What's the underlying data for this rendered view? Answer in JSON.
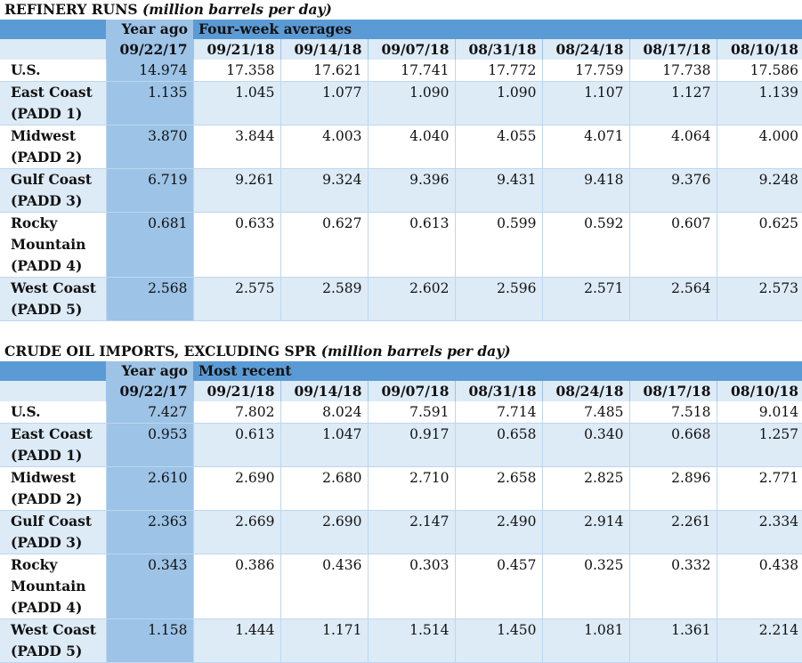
{
  "tables": [
    {
      "title": "REFINERY RUNS",
      "unit": "(million barrels per day)",
      "year_ago_label": "Year ago",
      "group_label": "Four-week averages",
      "dates": [
        "09/22/17",
        "09/21/18",
        "09/14/18",
        "09/07/18",
        "08/31/18",
        "08/24/18",
        "08/17/18",
        "08/10/18"
      ],
      "rows": [
        {
          "region": "U.S.",
          "values": [
            "14.974",
            "17.358",
            "17.621",
            "17.741",
            "17.772",
            "17.759",
            "17.738",
            "17.586"
          ]
        },
        {
          "region": "East Coast (PADD 1)",
          "values": [
            "1.135",
            "1.045",
            "1.077",
            "1.090",
            "1.090",
            "1.107",
            "1.127",
            "1.139"
          ]
        },
        {
          "region": "Midwest (PADD 2)",
          "values": [
            "3.870",
            "3.844",
            "4.003",
            "4.040",
            "4.055",
            "4.071",
            "4.064",
            "4.000"
          ]
        },
        {
          "region": "Gulf Coast (PADD 3)",
          "values": [
            "6.719",
            "9.261",
            "9.324",
            "9.396",
            "9.431",
            "9.418",
            "9.376",
            "9.248"
          ]
        },
        {
          "region": "Rocky Mountain (PADD 4)",
          "values": [
            "0.681",
            "0.633",
            "0.627",
            "0.613",
            "0.599",
            "0.592",
            "0.607",
            "0.625"
          ]
        },
        {
          "region": "West Coast (PADD 5)",
          "values": [
            "2.568",
            "2.575",
            "2.589",
            "2.602",
            "2.596",
            "2.571",
            "2.564",
            "2.573"
          ]
        }
      ]
    },
    {
      "title": "CRUDE OIL IMPORTS, EXCLUDING SPR",
      "unit": "(million barrels per day)",
      "year_ago_label": "Year ago",
      "group_label": "Most recent",
      "dates": [
        "09/22/17",
        "09/21/18",
        "09/14/18",
        "09/07/18",
        "08/31/18",
        "08/24/18",
        "08/17/18",
        "08/10/18"
      ],
      "rows": [
        {
          "region": "U.S.",
          "values": [
            "7.427",
            "7.802",
            "8.024",
            "7.591",
            "7.714",
            "7.485",
            "7.518",
            "9.014"
          ]
        },
        {
          "region": "East Coast (PADD 1)",
          "values": [
            "0.953",
            "0.613",
            "1.047",
            "0.917",
            "0.658",
            "0.340",
            "0.668",
            "1.257"
          ]
        },
        {
          "region": "Midwest (PADD 2)",
          "values": [
            "2.610",
            "2.690",
            "2.680",
            "2.710",
            "2.658",
            "2.825",
            "2.896",
            "2.771"
          ]
        },
        {
          "region": "Gulf Coast (PADD 3)",
          "values": [
            "2.363",
            "2.669",
            "2.690",
            "2.147",
            "2.490",
            "2.914",
            "2.261",
            "2.334"
          ]
        },
        {
          "region": "Rocky Mountain (PADD 4)",
          "values": [
            "0.343",
            "0.386",
            "0.436",
            "0.303",
            "0.457",
            "0.325",
            "0.332",
            "0.438"
          ]
        },
        {
          "region": "West Coast (PADD 5)",
          "values": [
            "1.158",
            "1.444",
            "1.171",
            "1.514",
            "1.450",
            "1.081",
            "1.361",
            "2.214"
          ]
        }
      ]
    }
  ]
}
